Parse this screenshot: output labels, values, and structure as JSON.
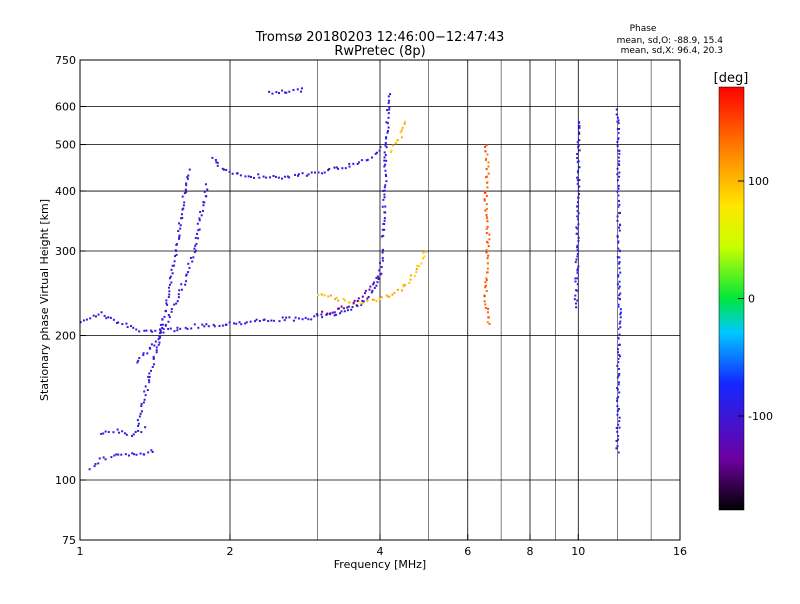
{
  "chart_data": {
    "type": "scatter",
    "title": "Tromsø 20180203 12:46:00−12:47:43",
    "subtitle": "RwPretec (8p)",
    "xlabel": "Frequency [MHz]",
    "ylabel": "Stationary phase Virtual Height [km]",
    "x_scale": "log",
    "y_scale": "log",
    "xlim": [
      1,
      16
    ],
    "ylim": [
      75,
      750
    ],
    "x_ticks": [
      1,
      2,
      4,
      6,
      8,
      10,
      16
    ],
    "x_minor_ticks": [
      3,
      5,
      7,
      9,
      12,
      14
    ],
    "y_ticks": [
      75,
      100,
      200,
      300,
      400,
      500,
      600,
      750
    ],
    "grid": true,
    "stats": {
      "title": "Phase",
      "line_o": "mean, sd,O: -88.9, 15.4",
      "line_x": "mean, sd,X:  96.4, 20.3"
    },
    "colorbar": {
      "label": "[deg]",
      "ticks": [
        100,
        0,
        -100
      ],
      "range": [
        -180,
        180
      ],
      "colormap": "rainbow"
    },
    "series": [
      {
        "polarity": "O",
        "color_value": -95,
        "traces": [
          {
            "x": [
              1.01,
              1.1,
              1.2,
              1.3,
              1.4,
              1.5,
              1.6,
              1.7,
              1.8,
              1.9,
              2.0,
              2.2,
              2.5,
              2.8,
              3.1,
              3.4,
              3.7,
              3.9,
              4.0,
              4.05
            ],
            "y": [
              215,
              222,
              212,
              206,
              204,
              205,
              207,
              209,
              210,
              211,
              212,
              214,
              216,
              217,
              219,
              225,
              235,
              250,
              270,
              300
            ]
          },
          {
            "x": [
              4.05,
              4.08,
              4.1,
              4.12,
              4.14,
              4.16,
              4.18
            ],
            "y": [
              320,
              380,
              440,
              500,
              560,
              610,
              640
            ]
          },
          {
            "x": [
              1.85,
              1.9,
              2.0,
              2.2,
              2.5,
              2.8,
              3.1,
              3.4,
              3.7,
              3.9,
              4.0
            ],
            "y": [
              470,
              450,
              435,
              430,
              428,
              432,
              440,
              450,
              462,
              475,
              490
            ]
          },
          {
            "x": [
              1.05,
              1.1,
              1.15,
              1.2,
              1.25,
              1.3,
              1.35,
              1.4
            ],
            "y": [
              106,
              110,
              112,
              112,
              113,
              113,
              114,
              115
            ]
          },
          {
            "x": [
              1.1,
              1.15,
              1.2,
              1.25,
              1.3,
              1.35
            ],
            "y": [
              125,
              127,
              126,
              124,
              125,
              128
            ]
          },
          {
            "x": [
              1.3,
              1.4,
              1.5,
              1.6,
              1.7,
              1.75,
              1.8
            ],
            "y": [
              175,
              190,
              215,
              250,
              300,
              360,
              410
            ]
          },
          {
            "x": [
              1.3,
              1.35,
              1.4,
              1.45,
              1.5,
              1.55,
              1.6,
              1.65
            ],
            "y": [
              130,
              150,
              175,
              200,
              240,
              290,
              360,
              440
            ]
          },
          {
            "x": [
              2.4,
              2.6,
              2.8
            ],
            "y": [
              640,
              645,
              650
            ]
          }
        ]
      },
      {
        "polarity": "X",
        "color_value": 100,
        "traces": [
          {
            "x": [
              3.0,
              3.2,
              3.4,
              3.6,
              3.8,
              4.0,
              4.2,
              4.4,
              4.6,
              4.8,
              4.95
            ],
            "y": [
              245,
              240,
              236,
              234,
              235,
              238,
              243,
              250,
              262,
              280,
              300
            ]
          },
          {
            "x": [
              4.2,
              4.3,
              4.4,
              4.5
            ],
            "y": [
              480,
              500,
              520,
              555
            ]
          }
        ]
      },
      {
        "polarity": "O",
        "color_value": -130,
        "traces": [
          {
            "x": [
              3.0,
              3.2,
              3.4,
              3.6,
              3.8,
              3.95
            ],
            "y": [
              222,
              224,
              229,
              236,
              248,
              265
            ]
          }
        ]
      },
      {
        "polarity": "X",
        "color_value": 140,
        "traces": [
          {
            "x": [
              6.5,
              6.6,
              6.5,
              6.6,
              6.5,
              6.6
            ],
            "y": [
              500,
              450,
              380,
              320,
              250,
              210
            ]
          }
        ]
      },
      {
        "polarity": "O",
        "color_value": -90,
        "traces": [
          {
            "x": [
              10.0,
              10.0,
              10.0,
              10.0,
              9.9
            ],
            "y": [
              560,
              500,
              430,
              390,
              230
            ]
          },
          {
            "x": [
              12.0,
              12.1,
              12.0
            ],
            "y": [
              590,
              220,
              115
            ]
          }
        ]
      }
    ]
  }
}
